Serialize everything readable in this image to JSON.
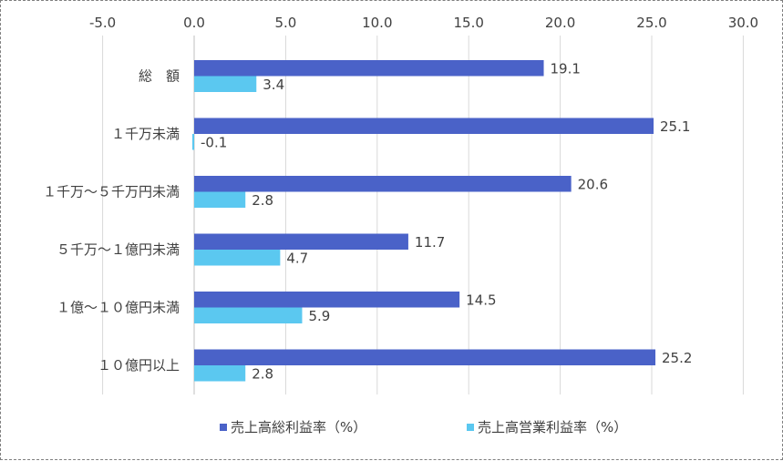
{
  "chart_data": {
    "type": "bar",
    "orientation": "horizontal",
    "categories": [
      "総　額",
      "１千万未満",
      "１千万～５千万円未満",
      "５千万～１億円未満",
      "１億～１０億円未満",
      "１０億円以上"
    ],
    "series": [
      {
        "name": "売上高総利益率（%）",
        "values": [
          19.1,
          25.1,
          20.6,
          11.7,
          14.5,
          25.2
        ],
        "color": "#4a62c8"
      },
      {
        "name": "売上高営業利益率（%）",
        "values": [
          3.4,
          -0.1,
          2.8,
          4.7,
          5.9,
          2.8
        ],
        "color": "#5bc8f0"
      }
    ],
    "data_labels": [
      [
        "19.1",
        "25.1",
        "20.6",
        "11.7",
        "14.5",
        "25.2"
      ],
      [
        "3.4",
        "-0.1",
        "2.8",
        "4.7",
        "5.9",
        "2.8"
      ]
    ],
    "xlim": [
      -5,
      30
    ],
    "x_ticks": [
      "-5.0",
      "0.0",
      "5.0",
      "10.0",
      "15.0",
      "20.0",
      "25.0",
      "30.0"
    ],
    "axis_position": "top",
    "grid": "vertical",
    "legend_position": "bottom",
    "title": "",
    "xlabel": "",
    "ylabel": ""
  }
}
